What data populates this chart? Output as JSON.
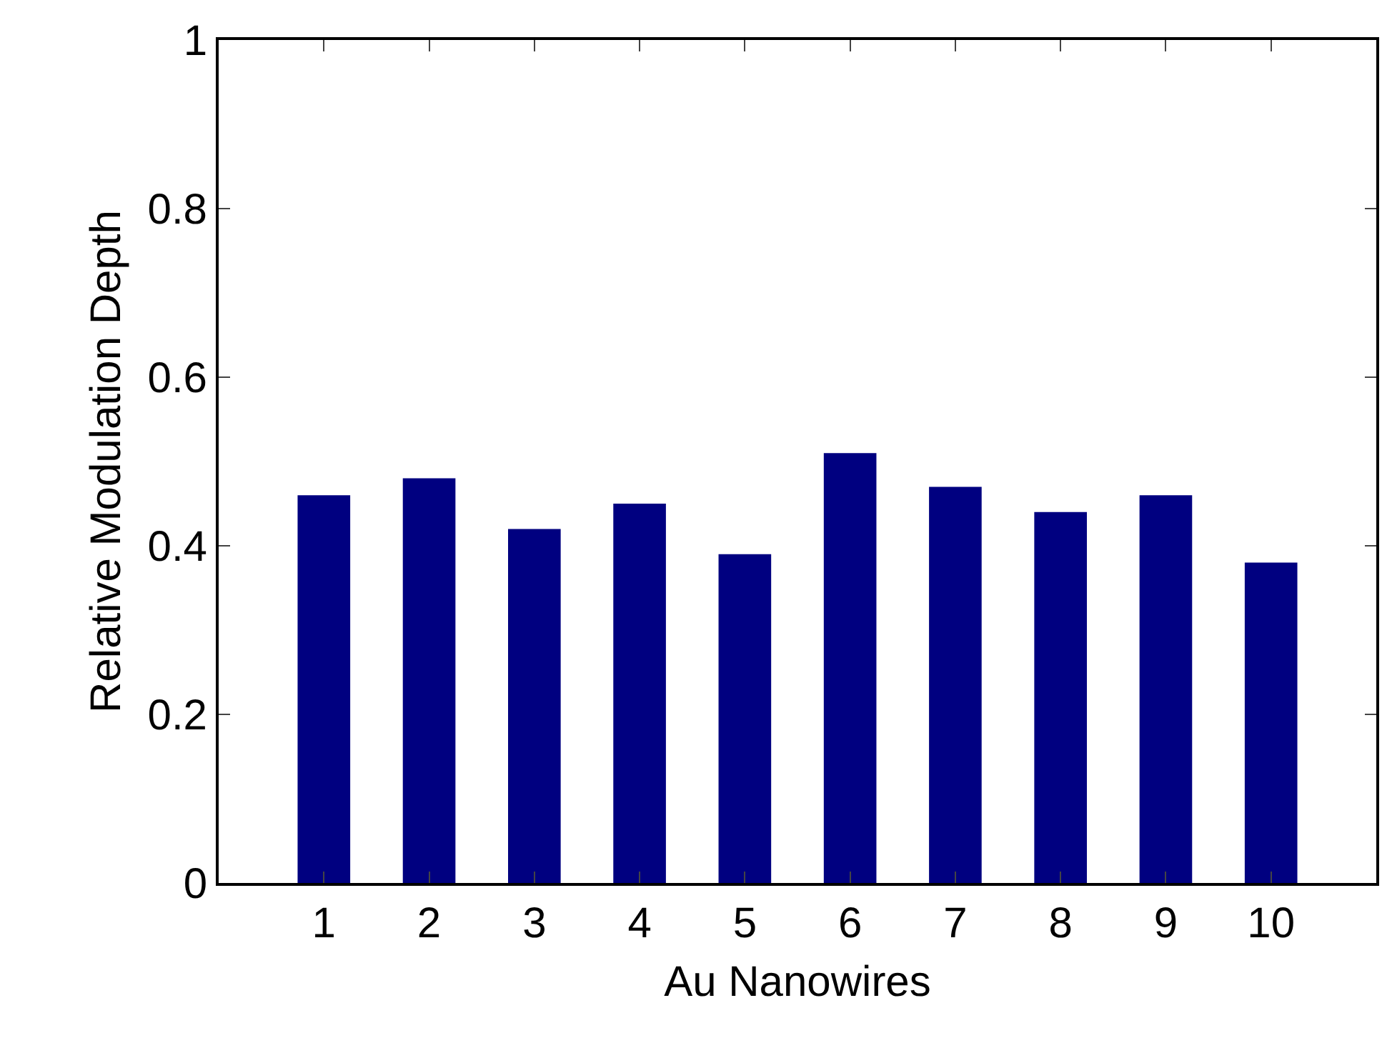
{
  "chart_data": {
    "type": "bar",
    "xlabel": "Au Nanowires",
    "ylabel": "Relative Modulation Depth",
    "x": [
      1,
      2,
      3,
      4,
      5,
      6,
      7,
      8,
      9,
      10
    ],
    "values": [
      0.46,
      0.48,
      0.42,
      0.45,
      0.39,
      0.51,
      0.47,
      0.44,
      0.46,
      0.38
    ],
    "color": "#000080",
    "xlim": [
      0,
      11
    ],
    "xticks": [
      1,
      2,
      3,
      4,
      5,
      6,
      7,
      8,
      9,
      10
    ],
    "ylim": [
      0,
      1
    ],
    "yticks": [
      0,
      0.2,
      0.4,
      0.6,
      0.8,
      1
    ],
    "grid": false,
    "legend": false
  }
}
